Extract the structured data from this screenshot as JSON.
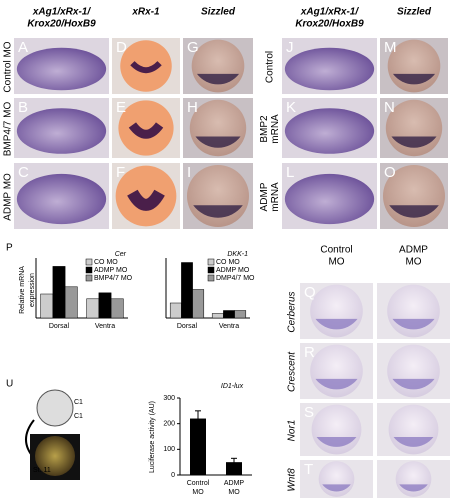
{
  "photo_grids": [
    {
      "column_headers": [
        [
          "xAg1/xRx-1/",
          "Krox20/HoxB9"
        ],
        [
          "xRx-1"
        ],
        [
          "Sizzled"
        ]
      ],
      "row_labels": [
        [
          "Control MO"
        ],
        [
          "BMP4/7 MO"
        ],
        [
          "ADMP MO"
        ]
      ],
      "letters": [
        [
          "A",
          "D",
          "G"
        ],
        [
          "B",
          "E",
          "H"
        ],
        [
          "C",
          "F",
          "I"
        ]
      ]
    },
    {
      "column_headers": [
        [
          "xAg1/xRx-1/",
          "Krox20/HoxB9"
        ],
        [
          "Sizzled"
        ]
      ],
      "row_labels": [
        [
          "Control"
        ],
        [
          "BMP2",
          "mRNA"
        ],
        [
          "ADMP",
          "mRNA"
        ]
      ],
      "letters": [
        [
          "J",
          "M"
        ],
        [
          "K",
          "N"
        ],
        [
          "L",
          "O"
        ]
      ]
    },
    {
      "column_headers": [
        [
          "Control",
          "MO"
        ],
        [
          "ADMP",
          "MO"
        ]
      ],
      "row_labels": [
        [
          "Cerberus"
        ],
        [
          "Crescent"
        ],
        [
          "Nor1"
        ],
        [
          "Wnt8"
        ]
      ],
      "letters": [
        [
          "Q"
        ],
        [
          "R"
        ],
        [
          "S"
        ],
        [
          "T"
        ]
      ]
    }
  ],
  "panel_p": {
    "letter": "P",
    "y_label": [
      "Relative mRNA",
      "expression"
    ],
    "charts": [
      {
        "type": "bar",
        "title": "Cer",
        "categories": [
          "Dorsal",
          "Ventra"
        ],
        "ylim": [
          0,
          2.5
        ],
        "series": [
          {
            "name": "CO MO",
            "color": "#cccccc",
            "values": [
              1.0,
              0.8
            ]
          },
          {
            "name": "ADMP MO",
            "color": "#000000",
            "values": [
              2.15,
              1.05
            ]
          },
          {
            "name": "BMP4/7 MO",
            "color": "#999999",
            "values": [
              1.3,
              0.8
            ]
          }
        ]
      },
      {
        "type": "bar",
        "title": "DKK-1",
        "categories": [
          "Dorsal",
          "Ventra"
        ],
        "ylim": [
          0,
          4
        ],
        "series": [
          {
            "name": "CO MO",
            "color": "#cccccc",
            "values": [
              1.0,
              0.3
            ]
          },
          {
            "name": "ADMP MO",
            "color": "#000000",
            "values": [
              3.7,
              0.5
            ]
          },
          {
            "name": "DMP4/7 MO",
            "color": "#999999",
            "values": [
              1.9,
              0.5
            ]
          }
        ]
      }
    ]
  },
  "panel_u": {
    "letter": "U",
    "image_labels": [
      "C1",
      "C1",
      "St. 11"
    ],
    "chart": {
      "type": "bar",
      "title": "ID1-lux",
      "y_label": "Luciferase activity (AU)",
      "categories": [
        [
          "Control",
          "MO"
        ],
        [
          "ADMP",
          "MO"
        ]
      ],
      "values": [
        220,
        50
      ],
      "errors": [
        30,
        15
      ],
      "color": "#000000",
      "ylim": [
        0,
        300
      ],
      "yticks": [
        0,
        100,
        200,
        300
      ]
    }
  }
}
